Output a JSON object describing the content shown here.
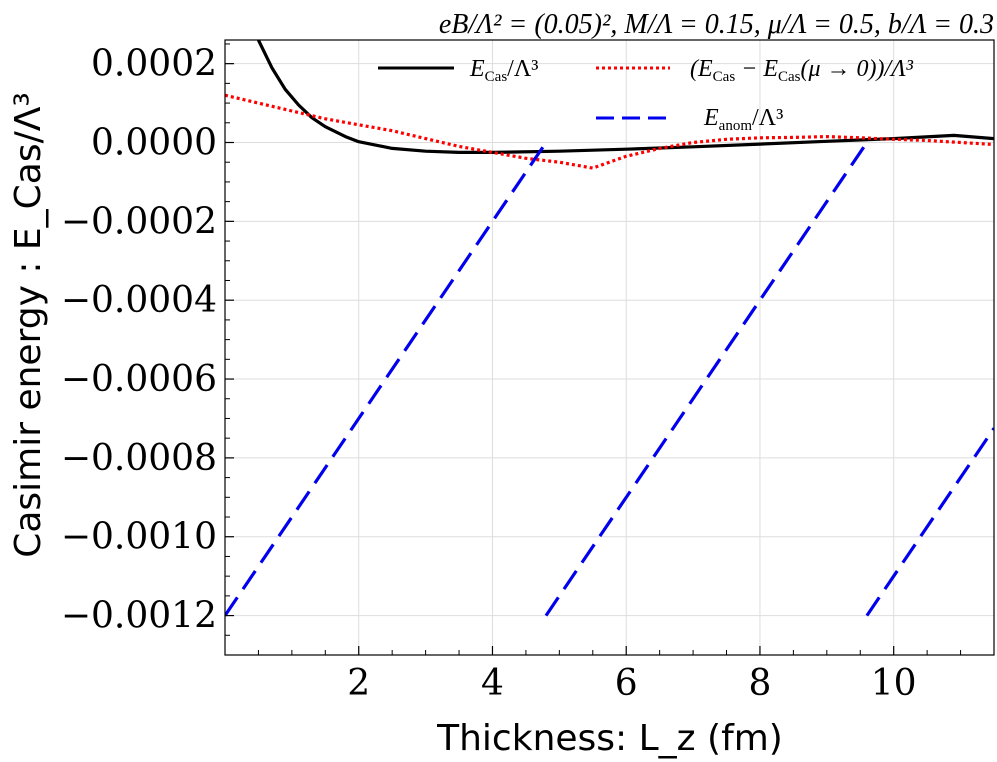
{
  "chart_data": {
    "type": "line",
    "title": "eB/Λ² = (0.05)²,  M/Λ = 0.15, μ/Λ = 0.5, b/Λ = 0.3",
    "xlabel": "Thickness: L_z (fm)",
    "ylabel": "Casimir energy : E_Cas/Λ³",
    "xlim": [
      0,
      11.5
    ],
    "ylim": [
      -0.0013,
      0.00026
    ],
    "x_ticks": [
      2,
      4,
      6,
      8,
      10
    ],
    "x_tick_labels": [
      "2",
      "4",
      "6",
      "8",
      "10"
    ],
    "y_ticks": [
      0.0002,
      0.0,
      -0.0002,
      -0.0004,
      -0.0006,
      -0.0008,
      -0.001,
      -0.0012
    ],
    "y_tick_labels": [
      "0.0002",
      "0.0000",
      "−0.0002",
      "−0.0004",
      "−0.0006",
      "−0.0008",
      "−0.0010",
      "−0.0012"
    ],
    "grid": true,
    "legend": "top",
    "series": [
      {
        "name": "E_Cas/Λ³",
        "label": "E",
        "sub": "Cas",
        "tail": "/Λ³",
        "color": "#000000",
        "style": "solid",
        "x": [
          0.5,
          0.7,
          0.9,
          1.1,
          1.3,
          1.5,
          1.8,
          2.0,
          2.5,
          3.0,
          3.5,
          4.0,
          5.0,
          6.0,
          7.0,
          8.0,
          9.0,
          10.0,
          10.9,
          11.5
        ],
        "y": [
          0.00026,
          0.00019,
          0.000135,
          9.5e-05,
          6.3e-05,
          4e-05,
          1.5e-05,
          2e-06,
          -1.5e-05,
          -2.2e-05,
          -2.5e-05,
          -2.5e-05,
          -2.2e-05,
          -1.7e-05,
          -1.1e-05,
          -4e-06,
          3e-06,
          1e-05,
          1.8e-05,
          1e-05
        ]
      },
      {
        "name": "(E_Cas − E_Cas(μ → 0))/Λ³",
        "label": "(E",
        "sub": "Cas",
        "tail": " − E",
        "sub2": "Cas",
        "tail2": "(μ → 0))/Λ³",
        "color": "#ff0000",
        "style": "dotted",
        "x": [
          0.0,
          0.5,
          1.0,
          1.5,
          2.0,
          2.5,
          3.0,
          3.5,
          4.0,
          4.5,
          5.0,
          5.5,
          6.0,
          6.5,
          7.0,
          7.5,
          8.0,
          8.5,
          9.0,
          9.5,
          10.0,
          10.5,
          11.0,
          11.5
        ],
        "y": [
          0.00012,
          0.0001,
          8e-05,
          6e-05,
          4.5e-05,
          3e-05,
          1e-05,
          -1e-05,
          -2.5e-05,
          -4e-05,
          -5e-05,
          -6.5e-05,
          -3.5e-05,
          -1.5e-05,
          0.0,
          8e-06,
          1.2e-05,
          1.3e-05,
          1.5e-05,
          1.2e-05,
          8e-06,
          5e-06,
          0.0,
          -5e-06
        ]
      },
      {
        "name": "E_anom/Λ³",
        "label": "E",
        "sub": "anom",
        "tail": "/Λ³",
        "color": "#0000ee",
        "style": "dashed",
        "segments": [
          {
            "x": [
              0.0,
              4.8
            ],
            "y": [
              -0.0012,
              0.0
            ]
          },
          {
            "x": [
              4.8,
              9.6
            ],
            "y": [
              -0.0012,
              0.0
            ]
          },
          {
            "x": [
              9.6,
              11.5
            ],
            "y": [
              -0.0012,
              -0.000725
            ]
          }
        ]
      }
    ]
  }
}
